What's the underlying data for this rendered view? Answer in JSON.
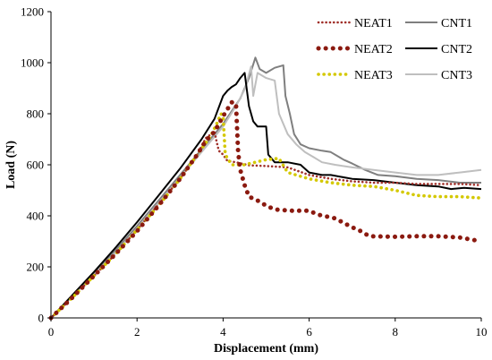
{
  "chart_data": {
    "type": "line",
    "xlabel": "Displacement (mm)",
    "ylabel": "Load (N)",
    "xlim": [
      0,
      10
    ],
    "ylim": [
      0,
      1200
    ],
    "xticks": [
      "0",
      "2",
      "4",
      "6",
      "8",
      "10"
    ],
    "yticks": [
      "0",
      "200",
      "400",
      "600",
      "800",
      "1000",
      "1200"
    ],
    "grid": false,
    "legend_position": "top-right",
    "series": [
      {
        "name": "NEAT1",
        "color": "#a0302a",
        "style": "dotted-small",
        "points": [
          [
            0,
            0
          ],
          [
            0.5,
            80
          ],
          [
            1.0,
            165
          ],
          [
            1.5,
            250
          ],
          [
            2.0,
            345
          ],
          [
            2.5,
            445
          ],
          [
            3.0,
            545
          ],
          [
            3.4,
            640
          ],
          [
            3.6,
            705
          ],
          [
            3.8,
            730
          ],
          [
            3.85,
            690
          ],
          [
            3.9,
            655
          ],
          [
            4.0,
            640
          ],
          [
            4.1,
            615
          ],
          [
            4.3,
            610
          ],
          [
            4.6,
            598
          ],
          [
            5.0,
            595
          ],
          [
            5.5,
            590
          ],
          [
            6.0,
            560
          ],
          [
            6.5,
            545
          ],
          [
            7.0,
            535
          ],
          [
            7.5,
            530
          ],
          [
            8.0,
            530
          ],
          [
            8.5,
            525
          ],
          [
            9.0,
            525
          ],
          [
            9.5,
            525
          ],
          [
            10.0,
            520
          ]
        ]
      },
      {
        "name": "NEAT2",
        "color": "#8b1a10",
        "style": "dotted-large",
        "points": [
          [
            0,
            0
          ],
          [
            0.5,
            80
          ],
          [
            1.0,
            165
          ],
          [
            1.5,
            250
          ],
          [
            2.0,
            340
          ],
          [
            2.5,
            440
          ],
          [
            3.0,
            545
          ],
          [
            3.4,
            640
          ],
          [
            3.6,
            695
          ],
          [
            3.8,
            730
          ],
          [
            4.0,
            790
          ],
          [
            4.2,
            845
          ],
          [
            4.3,
            840
          ],
          [
            4.35,
            650
          ],
          [
            4.4,
            580
          ],
          [
            4.5,
            520
          ],
          [
            4.6,
            475
          ],
          [
            4.8,
            460
          ],
          [
            5.0,
            440
          ],
          [
            5.2,
            425
          ],
          [
            5.6,
            420
          ],
          [
            6.0,
            420
          ],
          [
            6.2,
            405
          ],
          [
            6.6,
            390
          ],
          [
            7.0,
            355
          ],
          [
            7.2,
            340
          ],
          [
            7.4,
            320
          ],
          [
            8.0,
            318
          ],
          [
            8.5,
            320
          ],
          [
            9.0,
            320
          ],
          [
            9.5,
            315
          ],
          [
            10.0,
            300
          ]
        ]
      },
      {
        "name": "NEAT3",
        "color": "#d4c800",
        "style": "dotted-medium",
        "points": [
          [
            0,
            0
          ],
          [
            0.5,
            80
          ],
          [
            1.0,
            165
          ],
          [
            1.5,
            250
          ],
          [
            2.0,
            345
          ],
          [
            2.5,
            440
          ],
          [
            3.0,
            545
          ],
          [
            3.4,
            640
          ],
          [
            3.7,
            710
          ],
          [
            3.85,
            760
          ],
          [
            3.95,
            800
          ],
          [
            4.0,
            790
          ],
          [
            4.05,
            640
          ],
          [
            4.2,
            600
          ],
          [
            4.5,
            600
          ],
          [
            5.0,
            620
          ],
          [
            5.3,
            625
          ],
          [
            5.5,
            570
          ],
          [
            6.0,
            545
          ],
          [
            6.5,
            530
          ],
          [
            7.0,
            520
          ],
          [
            7.5,
            515
          ],
          [
            8.0,
            500
          ],
          [
            8.5,
            480
          ],
          [
            9.0,
            475
          ],
          [
            9.5,
            475
          ],
          [
            10.0,
            470
          ]
        ]
      },
      {
        "name": "CNT1",
        "color": "#7f7f7f",
        "style": "solid",
        "points": [
          [
            0,
            0
          ],
          [
            0.5,
            85
          ],
          [
            1.0,
            175
          ],
          [
            1.5,
            265
          ],
          [
            2.0,
            360
          ],
          [
            2.5,
            460
          ],
          [
            3.0,
            560
          ],
          [
            3.5,
            660
          ],
          [
            4.0,
            760
          ],
          [
            4.4,
            860
          ],
          [
            4.6,
            940
          ],
          [
            4.75,
            1020
          ],
          [
            4.85,
            975
          ],
          [
            5.0,
            960
          ],
          [
            5.2,
            980
          ],
          [
            5.4,
            990
          ],
          [
            5.45,
            870
          ],
          [
            5.55,
            800
          ],
          [
            5.65,
            720
          ],
          [
            5.8,
            680
          ],
          [
            6.0,
            665
          ],
          [
            6.3,
            655
          ],
          [
            6.5,
            650
          ],
          [
            6.8,
            620
          ],
          [
            7.0,
            605
          ],
          [
            7.3,
            580
          ],
          [
            7.6,
            560
          ],
          [
            8.0,
            555
          ],
          [
            8.5,
            545
          ],
          [
            9.0,
            540
          ],
          [
            9.5,
            530
          ],
          [
            10.0,
            530
          ]
        ]
      },
      {
        "name": "CNT2",
        "color": "#000000",
        "style": "solid",
        "points": [
          [
            0,
            0
          ],
          [
            0.5,
            90
          ],
          [
            1.0,
            180
          ],
          [
            1.5,
            275
          ],
          [
            2.0,
            375
          ],
          [
            2.5,
            480
          ],
          [
            3.0,
            585
          ],
          [
            3.5,
            700
          ],
          [
            3.8,
            780
          ],
          [
            4.0,
            870
          ],
          [
            4.1,
            890
          ],
          [
            4.2,
            905
          ],
          [
            4.3,
            915
          ],
          [
            4.4,
            940
          ],
          [
            4.5,
            960
          ],
          [
            4.6,
            830
          ],
          [
            4.7,
            770
          ],
          [
            4.8,
            750
          ],
          [
            5.0,
            750
          ],
          [
            5.05,
            640
          ],
          [
            5.2,
            610
          ],
          [
            5.5,
            610
          ],
          [
            5.8,
            600
          ],
          [
            6.0,
            570
          ],
          [
            6.3,
            560
          ],
          [
            6.5,
            560
          ],
          [
            7.0,
            545
          ],
          [
            7.5,
            540
          ],
          [
            8.0,
            530
          ],
          [
            8.5,
            520
          ],
          [
            9.0,
            515
          ],
          [
            9.3,
            505
          ],
          [
            9.6,
            510
          ],
          [
            10.0,
            505
          ]
        ]
      },
      {
        "name": "CNT3",
        "color": "#bfbfbf",
        "style": "solid",
        "points": [
          [
            0,
            0
          ],
          [
            0.5,
            85
          ],
          [
            1.0,
            170
          ],
          [
            1.5,
            255
          ],
          [
            2.0,
            350
          ],
          [
            2.5,
            450
          ],
          [
            3.0,
            550
          ],
          [
            3.5,
            650
          ],
          [
            4.0,
            750
          ],
          [
            4.3,
            830
          ],
          [
            4.5,
            895
          ],
          [
            4.65,
            985
          ],
          [
            4.7,
            870
          ],
          [
            4.8,
            960
          ],
          [
            5.0,
            940
          ],
          [
            5.2,
            930
          ],
          [
            5.3,
            800
          ],
          [
            5.5,
            720
          ],
          [
            5.7,
            680
          ],
          [
            5.9,
            650
          ],
          [
            6.1,
            630
          ],
          [
            6.3,
            610
          ],
          [
            6.6,
            600
          ],
          [
            7.0,
            590
          ],
          [
            7.5,
            580
          ],
          [
            8.0,
            570
          ],
          [
            8.5,
            560
          ],
          [
            9.0,
            560
          ],
          [
            9.5,
            570
          ],
          [
            10.0,
            580
          ]
        ]
      }
    ]
  }
}
